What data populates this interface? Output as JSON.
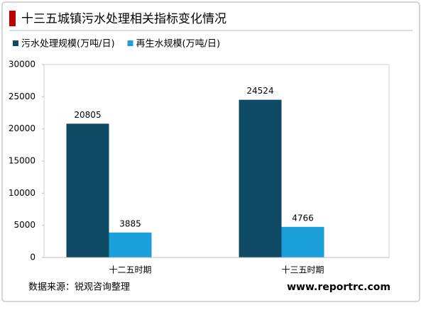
{
  "chart_data": {
    "type": "bar",
    "title": "十三五城镇污水处理相关指标变化情况",
    "categories": [
      "十二五时期",
      "十三五时期"
    ],
    "series": [
      {
        "name": "污水处理规模(万吨/日)",
        "color": "#0e4a63",
        "values": [
          20805,
          24524
        ]
      },
      {
        "name": "再生水规模(万吨/日)",
        "color": "#1ca0d9",
        "values": [
          3885,
          4766
        ]
      }
    ],
    "ylim": [
      0,
      30000
    ],
    "yticks": [
      0,
      5000,
      10000,
      15000,
      20000,
      25000,
      30000
    ],
    "source": "数据来源：锐观咨询整理",
    "website": "www.reportrc.com"
  }
}
